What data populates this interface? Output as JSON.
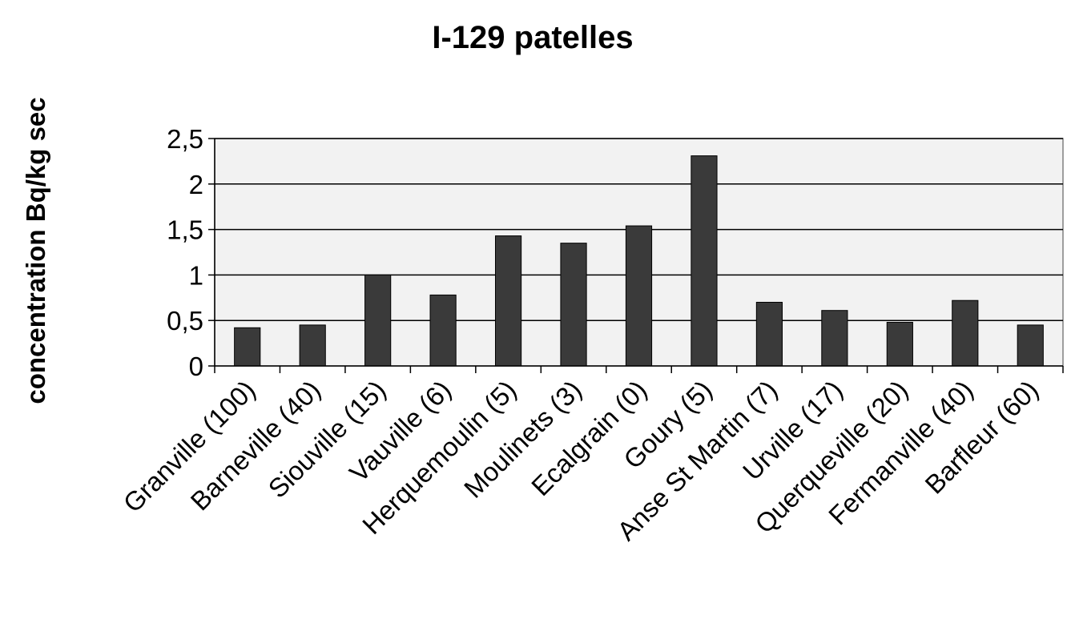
{
  "chart_data": {
    "type": "bar",
    "title": "I-129 patelles",
    "xlabel": "",
    "ylabel": "concentration Bq/kg sec",
    "categories": [
      "Granville (100)",
      "Barneville (40)",
      "Siouville (15)",
      "Vauville (6)",
      "Herquemoulin (5)",
      "Moulinets (3)",
      "Ecalgrain (0)",
      "Goury (5)",
      "Anse St Martin (7)",
      "Urville (17)",
      "Querqueville (20)",
      "Fermanville (40)",
      "Barfleur (60)"
    ],
    "values": [
      0.42,
      0.45,
      1.0,
      0.78,
      1.43,
      1.35,
      1.54,
      2.31,
      0.7,
      0.61,
      0.48,
      0.72,
      0.45
    ],
    "ylim": [
      0,
      2.5
    ],
    "yticks": [
      0,
      0.5,
      1,
      1.5,
      2,
      2.5
    ],
    "ytick_labels": [
      "0",
      "0,5",
      "1",
      "1,5",
      "2",
      "2,5"
    ],
    "grid": true,
    "legend": "none",
    "colors": {
      "bar": "#3a3a3a",
      "plot_background": "#f2f2f2",
      "gridline": "#000000"
    }
  }
}
